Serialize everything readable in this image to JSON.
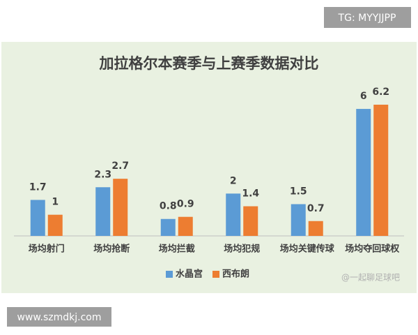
{
  "chart_data": {
    "type": "bar",
    "title": "加拉格尔本赛季与上赛季数据对比",
    "categories": [
      "场均射门",
      "场均抢断",
      "场均拦截",
      "场均犯规",
      "场均关键传球",
      "场均夺回球权"
    ],
    "series": [
      {
        "name": "水晶宫",
        "color": "#5b9bd5",
        "values": [
          1.7,
          2.3,
          0.8,
          2,
          1.5,
          6
        ]
      },
      {
        "name": "西布朗",
        "color": "#ed7d31",
        "values": [
          1,
          2.7,
          0.9,
          1.4,
          0.7,
          6.2
        ]
      }
    ],
    "legend": "bottom",
    "grid": false
  },
  "watermarks": [
    "TG: MYYJJPP",
    "www.szmdkj.com",
    "@一起聊足球吧"
  ]
}
